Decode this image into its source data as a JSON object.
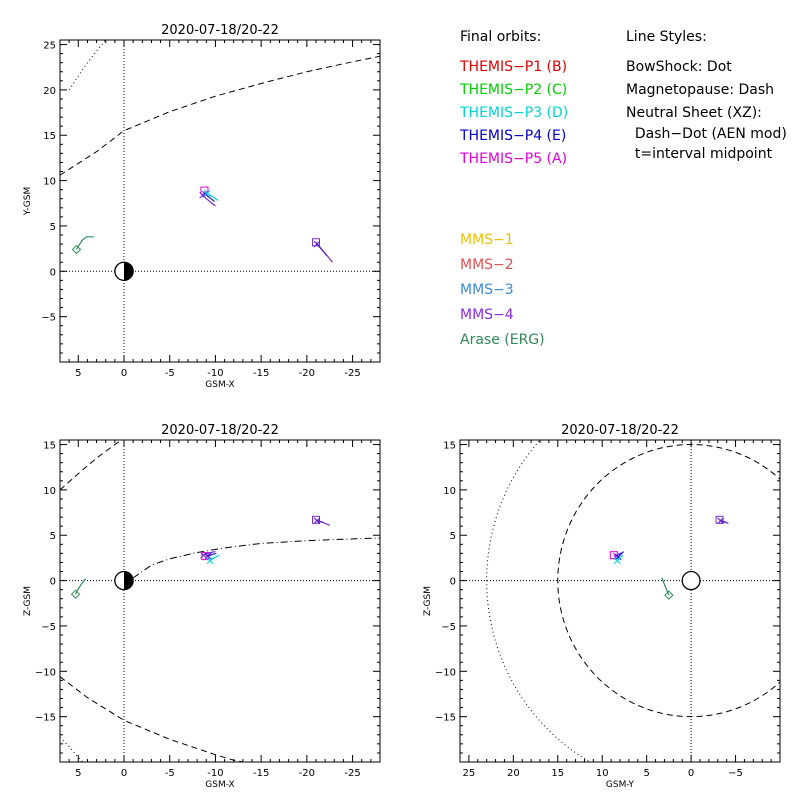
{
  "chart_data": [
    {
      "type": "scatter",
      "title": "2020-07-18/20-22",
      "xlabel": "GSM-X",
      "ylabel": "Y-GSM",
      "xlim": [
        7,
        -28
      ],
      "ylim": [
        25.5,
        -10
      ],
      "x_ticks": [
        5,
        0,
        -5,
        -10,
        -15,
        -20,
        -25
      ],
      "y_ticks": [
        -5,
        0,
        5,
        10,
        15,
        20,
        25
      ],
      "y_tick_labels": [
        "−5",
        "0",
        "5",
        "10",
        "15",
        "20",
        "25"
      ],
      "zero_lines": true,
      "earth": {
        "x": 0,
        "y": 0,
        "r": 1
      },
      "boundaries": [
        {
          "name": "Magnetopause",
          "style": "dash",
          "points": [
            [
              7,
              10.6
            ],
            [
              3,
              13.2
            ],
            [
              0,
              15.5
            ],
            [
              -5,
              17.6
            ],
            [
              -10,
              19.3
            ],
            [
              -15,
              20.7
            ],
            [
              -20,
              22.0
            ],
            [
              -25,
              23.1
            ],
            [
              -28,
              23.7
            ]
          ]
        },
        {
          "name": "BowShock",
          "style": "dot",
          "points": [
            [
              6,
              20.0
            ],
            [
              4.5,
              22.3
            ],
            [
              3,
              24.3
            ],
            [
              2,
              25.5
            ]
          ]
        }
      ],
      "series": [
        {
          "color": "#7f2bd1",
          "track": [
            [
              -21.0,
              3.2
            ],
            [
              -21.4,
              2.7
            ],
            [
              -21.9,
              2.1
            ],
            [
              -22.4,
              1.5
            ],
            [
              -22.8,
              1.0
            ]
          ],
          "marker": "square"
        },
        {
          "color": "#5a1fc0",
          "track": [
            [
              -21.1,
              3.0
            ],
            [
              -21.7,
              2.3
            ],
            [
              -22.2,
              1.7
            ]
          ],
          "marker": "cross"
        },
        {
          "color": "#e000e0",
          "track": [
            [
              -8.8,
              8.9
            ],
            [
              -9.1,
              8.7
            ]
          ],
          "marker": "square"
        },
        {
          "color": "#7f2bd1",
          "track": [
            [
              -8.6,
              8.4
            ],
            [
              -9.0,
              8.0
            ],
            [
              -9.5,
              7.6
            ],
            [
              -10.0,
              7.2
            ]
          ],
          "marker": "cross"
        },
        {
          "color": "#2222e0",
          "track": [
            [
              -8.9,
              8.5
            ],
            [
              -9.4,
              8.1
            ],
            [
              -9.9,
              7.7
            ]
          ],
          "marker": "cross"
        },
        {
          "color": "#00d4d4",
          "track": [
            [
              -9.1,
              8.6
            ],
            [
              -9.7,
              8.2
            ],
            [
              -10.3,
              7.8
            ]
          ],
          "marker": "cross"
        },
        {
          "color": "#2e8b57",
          "track": [
            [
              5.2,
              2.4
            ],
            [
              4.9,
              2.9
            ],
            [
              4.6,
              3.4
            ],
            [
              4.1,
              3.8
            ],
            [
              3.3,
              3.8
            ]
          ],
          "marker": "diamond"
        }
      ]
    },
    {
      "type": "scatter",
      "title": "2020-07-18/20-22",
      "xlabel": "GSM-X",
      "ylabel": "Z-GSM",
      "xlim": [
        7,
        -28
      ],
      "ylim": [
        15.5,
        -20
      ],
      "x_ticks": [
        5,
        0,
        -5,
        -10,
        -15,
        -20,
        -25
      ],
      "y_ticks": [
        15,
        10,
        5,
        0,
        -5,
        -10,
        -15
      ],
      "y_tick_labels": [
        "15",
        "10",
        "5",
        "0",
        "−5",
        "−10",
        "−15"
      ],
      "zero_lines": true,
      "earth": {
        "x": 0,
        "y": 0,
        "r": 1
      },
      "boundaries": [
        {
          "name": "Magnetopause",
          "style": "dash",
          "points": [
            [
              7,
              10.0
            ],
            [
              5,
              11.8
            ],
            [
              3,
              13.5
            ],
            [
              1,
              15.0
            ],
            [
              0.3,
              15.5
            ]
          ]
        },
        {
          "name": "Magnetopause",
          "style": "dash",
          "points": [
            [
              7,
              -10.6
            ],
            [
              4,
              -12.9
            ],
            [
              0,
              -15.4
            ],
            [
              -5,
              -17.5
            ],
            [
              -10,
              -19.2
            ],
            [
              -12,
              -19.8
            ],
            [
              -13,
              -20.0
            ]
          ]
        },
        {
          "name": "BowShock",
          "style": "dot",
          "points": [
            [
              7,
              -17.3
            ],
            [
              6,
              -18.3
            ],
            [
              5,
              -19.5
            ],
            [
              4.5,
              -20
            ]
          ]
        },
        {
          "name": "Neutral Sheet",
          "style": "dashdot",
          "points": [
            [
              -1,
              0.3
            ],
            [
              -3,
              1.7
            ],
            [
              -5,
              2.4
            ],
            [
              -8,
              3.1
            ],
            [
              -11,
              3.6
            ],
            [
              -15,
              4.1
            ],
            [
              -20,
              4.4
            ],
            [
              -25,
              4.6
            ],
            [
              -28,
              4.7
            ]
          ]
        }
      ],
      "series": [
        {
          "color": "#7f2bd1",
          "track": [
            [
              -21.0,
              6.7
            ],
            [
              -21.5,
              6.5
            ],
            [
              -22.0,
              6.3
            ],
            [
              -22.5,
              6.1
            ]
          ],
          "marker": "square"
        },
        {
          "color": "#5a1fc0",
          "track": [
            [
              -21.1,
              6.6
            ],
            [
              -21.8,
              6.4
            ]
          ],
          "marker": "cross"
        },
        {
          "color": "#e000e0",
          "track": [
            [
              -8.9,
              2.7
            ],
            [
              -9.3,
              2.8
            ]
          ],
          "marker": "square"
        },
        {
          "color": "#7f2bd1",
          "track": [
            [
              -8.7,
              2.8
            ],
            [
              -9.1,
              3.0
            ],
            [
              -9.5,
              3.1
            ],
            [
              -10.0,
              3.2
            ]
          ],
          "marker": "cross"
        },
        {
          "color": "#2222e0",
          "track": [
            [
              -9.2,
              2.7
            ],
            [
              -9.7,
              2.9
            ],
            [
              -10.1,
              3.0
            ]
          ],
          "marker": "cross"
        },
        {
          "color": "#00d4d4",
          "track": [
            [
              -9.4,
              2.2
            ],
            [
              -9.9,
              2.5
            ],
            [
              -10.4,
              2.8
            ]
          ],
          "marker": "cross"
        },
        {
          "color": "#2e8b57",
          "track": [
            [
              5.3,
              -1.5
            ],
            [
              5.0,
              -0.9
            ],
            [
              4.6,
              -0.3
            ],
            [
              4.2,
              0.2
            ]
          ],
          "marker": "diamond"
        }
      ]
    },
    {
      "type": "scatter",
      "title": "2020-07-18/20-22",
      "xlabel": "GSM-Y",
      "ylabel": "Z-GSM",
      "xlim": [
        26,
        -10
      ],
      "ylim": [
        15.5,
        -20
      ],
      "x_ticks": [
        25,
        20,
        15,
        10,
        5,
        0,
        -5
      ],
      "x_tick_labels": [
        "25",
        "20",
        "15",
        "10",
        "5",
        "0",
        "−5"
      ],
      "y_ticks": [
        15,
        10,
        5,
        0,
        -5,
        -10,
        -15
      ],
      "y_tick_labels": [
        "15",
        "10",
        "5",
        "0",
        "−5",
        "−10",
        "−15"
      ],
      "zero_lines": true,
      "earth": {
        "x": 0,
        "y": 0,
        "r": 1,
        "open": true
      },
      "boundaries": [
        {
          "name": "Magnetopause",
          "style": "dash",
          "circle": {
            "cx": 0,
            "cy": 0,
            "r": 15
          }
        },
        {
          "name": "BowShock",
          "style": "dot",
          "circle": {
            "cx": 0,
            "cy": 0,
            "r": 23
          }
        }
      ],
      "series": [
        {
          "color": "#7f2bd1",
          "track": [
            [
              -3.2,
              6.7
            ],
            [
              -3.7,
              6.5
            ],
            [
              -4.2,
              6.3
            ]
          ],
          "marker": "square"
        },
        {
          "color": "#5a1fc0",
          "track": [
            [
              -3.3,
              6.6
            ],
            [
              -3.9,
              6.4
            ]
          ],
          "marker": "cross"
        },
        {
          "color": "#e000e0",
          "track": [
            [
              8.7,
              2.8
            ],
            [
              8.5,
              2.6
            ]
          ],
          "marker": "square"
        },
        {
          "color": "#7f2bd1",
          "track": [
            [
              8.4,
              2.7
            ],
            [
              8.1,
              2.9
            ],
            [
              7.8,
              3.1
            ]
          ],
          "marker": "cross"
        },
        {
          "color": "#2222e0",
          "track": [
            [
              8.2,
              2.6
            ],
            [
              7.9,
              2.9
            ],
            [
              7.6,
              3.2
            ]
          ],
          "marker": "cross"
        },
        {
          "color": "#00d4d4",
          "track": [
            [
              8.3,
              2.2
            ],
            [
              8.0,
              2.5
            ],
            [
              7.7,
              2.8
            ]
          ],
          "marker": "cross"
        },
        {
          "color": "#2e8b57",
          "track": [
            [
              2.5,
              -1.6
            ],
            [
              2.8,
              -0.9
            ],
            [
              3.1,
              -0.2
            ],
            [
              3.3,
              0.3
            ]
          ],
          "marker": "diamond"
        }
      ]
    }
  ],
  "legend": {
    "final_orbits_title": "Final orbits:",
    "themis": [
      {
        "label": "THEMIS−P1 (B)",
        "color": "#e00000"
      },
      {
        "label": "THEMIS−P2 (C)",
        "color": "#00d000"
      },
      {
        "label": "THEMIS−P3 (D)",
        "color": "#00d4d4"
      },
      {
        "label": "THEMIS−P4 (E)",
        "color": "#0000cc"
      },
      {
        "label": "THEMIS−P5 (A)",
        "color": "#e000e0"
      }
    ],
    "line_styles_title": "Line Styles:",
    "line_styles": [
      "BowShock: Dot",
      "Magnetopause: Dash",
      "Neutral Sheet (XZ):",
      "  Dash−Dot (AEN mod)",
      "  t=interval midpoint"
    ],
    "other_missions": [
      {
        "label": "MMS−1",
        "color": "#f0c000"
      },
      {
        "label": "MMS−2",
        "color": "#e05050"
      },
      {
        "label": "MMS−3",
        "color": "#3a8ad8"
      },
      {
        "label": "MMS−4",
        "color": "#8a2be2"
      },
      {
        "label": "Arase (ERG)",
        "color": "#2e8b57"
      }
    ]
  }
}
